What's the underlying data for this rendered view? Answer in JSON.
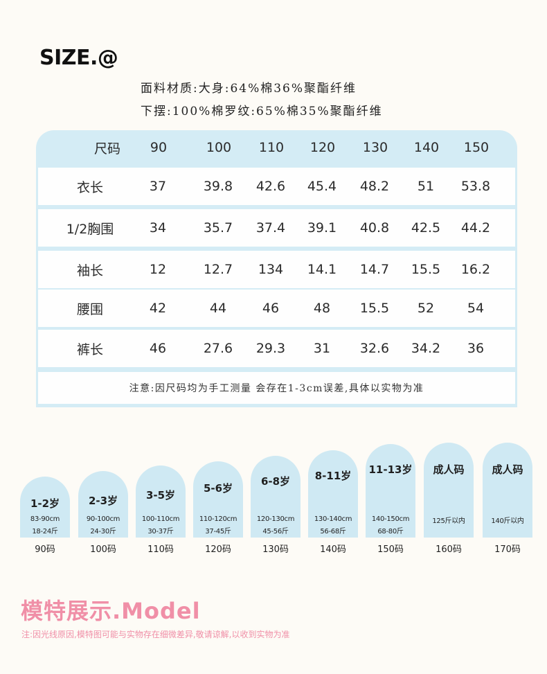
{
  "header": {
    "title": "SIZE.@",
    "material": "面料材质:大身:64%棉36%聚酯纤维",
    "hem": "下摆:100%棉罗纹:65%棉35%聚酯纤维"
  },
  "table": {
    "header": [
      "尺码",
      "90",
      "100",
      "110",
      "120",
      "130",
      "140",
      "150"
    ],
    "rows": [
      [
        "衣长",
        "37",
        "39.8",
        "42.6",
        "45.4",
        "48.2",
        "51",
        "53.8"
      ],
      [
        "1/2胸围",
        "34",
        "35.7",
        "37.4",
        "39.1",
        "40.8",
        "42.5",
        "44.2"
      ],
      [
        "袖长",
        "12",
        "12.7",
        "134",
        "14.1",
        "14.7",
        "15.5",
        "16.2"
      ],
      [
        "腰围",
        "42",
        "44",
        "46",
        "48",
        "15.5",
        "52",
        "54"
      ],
      [
        "裤长",
        "46",
        "27.6",
        "29.3",
        "31",
        "32.6",
        "34.2",
        "36"
      ]
    ],
    "note": "注意:因尺码均为手工测量 会存在1-3cm误差,具体以实物为准"
  },
  "size_cards": [
    {
      "age": "1-2岁",
      "line1": "83-90cm",
      "line2": "18-24斤",
      "size": "90码"
    },
    {
      "age": "2-3岁",
      "line1": "90-100cm",
      "line2": "24-30斤",
      "size": "100码"
    },
    {
      "age": "3-5岁",
      "line1": "100-110cm",
      "line2": "30-37斤",
      "size": "110码"
    },
    {
      "age": "5-6岁",
      "line1": "110-120cm",
      "line2": "37-45斤",
      "size": "120码"
    },
    {
      "age": "6-8岁",
      "line1": "120-130cm",
      "line2": "45-56斤",
      "size": "130码"
    },
    {
      "age": "8-11岁",
      "line1": "130-140cm",
      "line2": "56-68斤",
      "size": "140码"
    },
    {
      "age": "11-13岁",
      "line1": "140-150cm",
      "line2": "68-80斤",
      "size": "150码"
    },
    {
      "age": "成人码",
      "line1": "125斤以内",
      "line2": "",
      "size": "160码"
    },
    {
      "age": "成人码",
      "line1": "140斤以内",
      "line2": "",
      "size": "170码"
    }
  ],
  "model": {
    "title": "模特展示.Model",
    "note": "注:因光线原因,模特图可能与实物存在细微差异,敬请谅解,以收到实物为准"
  },
  "colors": {
    "background": "#fdfbf6",
    "table_blue": "#d4ecf5",
    "card_blue": "#cfe9f3",
    "pink": "#f08fa7"
  }
}
